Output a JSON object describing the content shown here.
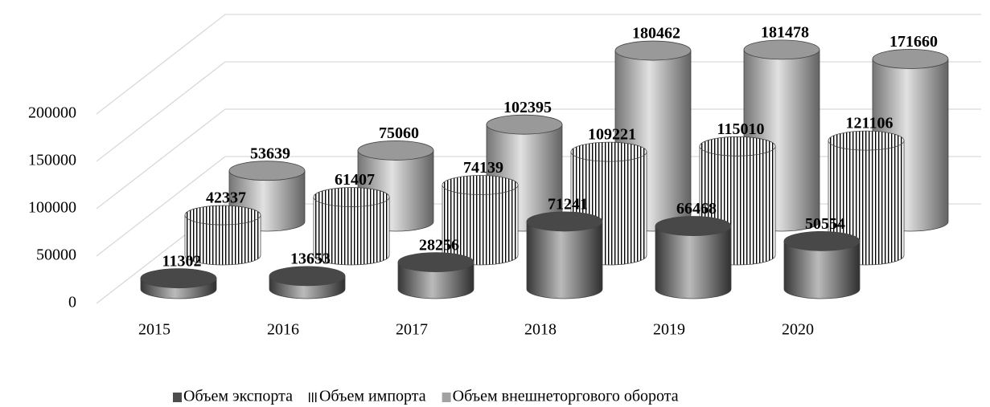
{
  "chart_data": {
    "type": "cylinder3d",
    "categories": [
      "2015",
      "2016",
      "2017",
      "2018",
      "2019",
      "2020"
    ],
    "series": [
      {
        "name": "Объем экспорта",
        "color": "#555555",
        "values": [
          11302,
          13653,
          28256,
          71241,
          66468,
          50554
        ]
      },
      {
        "name": "Объем импорта",
        "color": "#ffffff",
        "hatch": "vertical",
        "values": [
          42337,
          61407,
          74139,
          109221,
          115010,
          121106
        ]
      },
      {
        "name": "Объем внешнеторгового оборота",
        "color": "#b4b4b4",
        "values": [
          53639,
          75060,
          102395,
          180462,
          181478,
          171660
        ]
      }
    ],
    "ylim": [
      0,
      200000
    ],
    "yticks": [
      0,
      50000,
      100000,
      150000,
      200000
    ],
    "grid": true,
    "legend": "bottom"
  }
}
